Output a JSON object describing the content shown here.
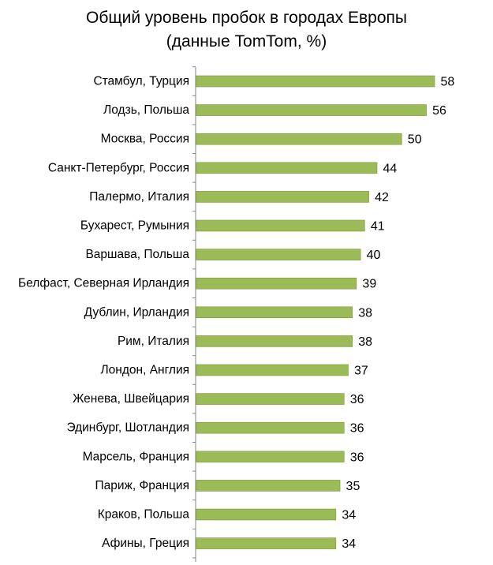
{
  "chart_data": {
    "type": "bar",
    "orientation": "horizontal",
    "title": "Общий уровень пробок в городах Европы",
    "subtitle": "(данные TomTom, %)",
    "categories": [
      "Стамбул, Турция",
      "Лодзь, Польша",
      "Москва, Россия",
      "Санкт-Петербург, Россия",
      "Палермо, Италия",
      "Бухарест, Румыния",
      "Варшава, Польша",
      "Белфаст, Северная Ирландия",
      "Дублин, Ирландия",
      "Рим, Италия",
      "Лондон, Англия",
      "Женева, Швейцария",
      "Эдинбург, Шотландия",
      "Марсель, Франция",
      "Париж, Франция",
      "Краков, Польша",
      "Афины, Греция"
    ],
    "values": [
      58,
      56,
      50,
      44,
      42,
      41,
      40,
      39,
      38,
      38,
      37,
      36,
      36,
      36,
      35,
      34,
      34
    ],
    "xlim": [
      0,
      60
    ],
    "grid": false,
    "legend": "none",
    "bar_color": "#9bbb59",
    "bar_edge_color": "#7a9a3a",
    "axis_color": "#868686"
  }
}
